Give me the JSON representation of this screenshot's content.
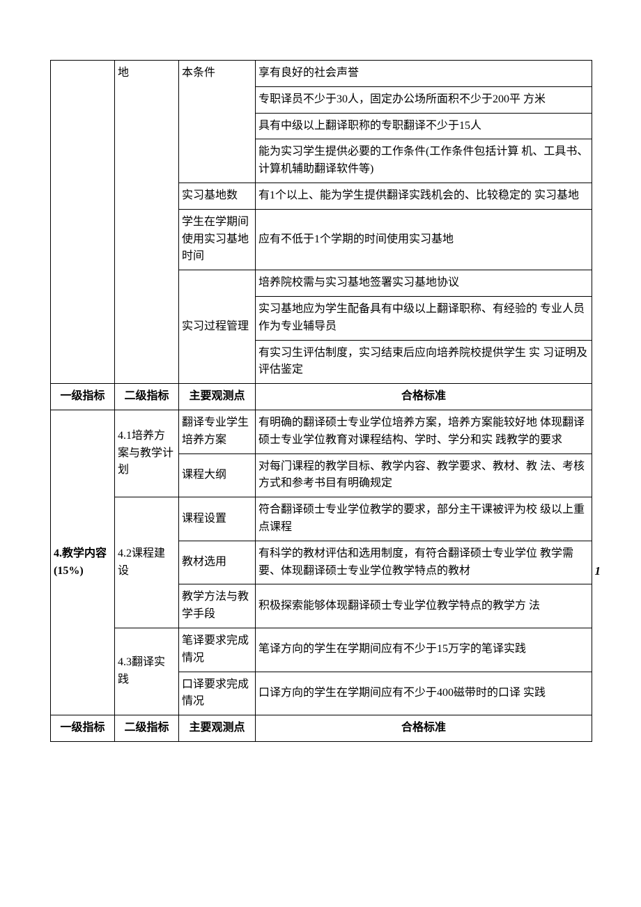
{
  "page_number": "1",
  "top": {
    "col1": "",
    "col2": "地",
    "basic_cond_label": "本条件",
    "basic_cond_rows": [
      "享有良好的社会声誉",
      "专职译员不少于30人，固定办公场所面积不少于200平 方米",
      "具有中级以上翻译职称的专职翻译不少于15人",
      "能为实习学生提供必要的工作条件(工作条件包括计算 机、工具书、计算机辅助翻译软件等)"
    ],
    "base_count_label": "实习基地数",
    "base_count_text": "有1个以上、能为学生提供翻译实践机会的、比较稳定的 实习基地",
    "use_time_label": "学生在学期间使用实习基地时间",
    "use_time_text": "应有不低于1个学期的时间使用实习基地",
    "process_label": "实习过程管理",
    "process_rows": [
      "培养院校需与实习基地签署实习基地协议",
      "实习基地应为学生配备具有中级以上翻译职称、有经验的 专业人员作为专业辅导员",
      "有实习生评估制度，实习结束后应向培养院校提供学生 实 习证明及评估鉴定"
    ]
  },
  "header": {
    "c1": "一级指标",
    "c2": "二级指标",
    "c3": "主要观测点",
    "c4": "合格标准"
  },
  "sec4": {
    "title": "4.教学内容(15%)",
    "s41": {
      "label": "4.1培养方案与教学计划",
      "plan_label": "翻译专业学生培养方案",
      "plan_text": "有明确的翻译硕士专业学位培养方案，培养方案能较好地 体现翻译硕士专业学位教育对课程结构、学时、学分和实 践教学的要求",
      "outline_label": "课程大纲",
      "outline_text": "对每门课程的教学目标、教学内容、教学要求、教材、教 法、考核方式和参考书目有明确规定"
    },
    "s42": {
      "label": "4.2课程建设",
      "setup_label": "课程设置",
      "setup_text": "符合翻译硕士专业学位教学的要求，部分主干课被评为校 级以上重点课程",
      "textbook_label": "教材选用",
      "textbook_text": "有科学的教材评估和选用制度，有符合翻译硕士专业学位 教学需要、体现翻译硕士专业学位教学特点的教材",
      "method_label": "教学方法与教学手段",
      "method_text": "积极探索能够体现翻译硕士专业学位教学特点的教学方 法"
    },
    "s43": {
      "label": "4.3翻译实践",
      "written_label": "笔译要求完成情况",
      "written_text": "笔译方向的学生在学期间应有不少于15万字的笔译实践",
      "oral_label": "口译要求完成情况",
      "oral_text": "口译方向的学生在学期间应有不少于400磁带时的口译 实践"
    }
  }
}
